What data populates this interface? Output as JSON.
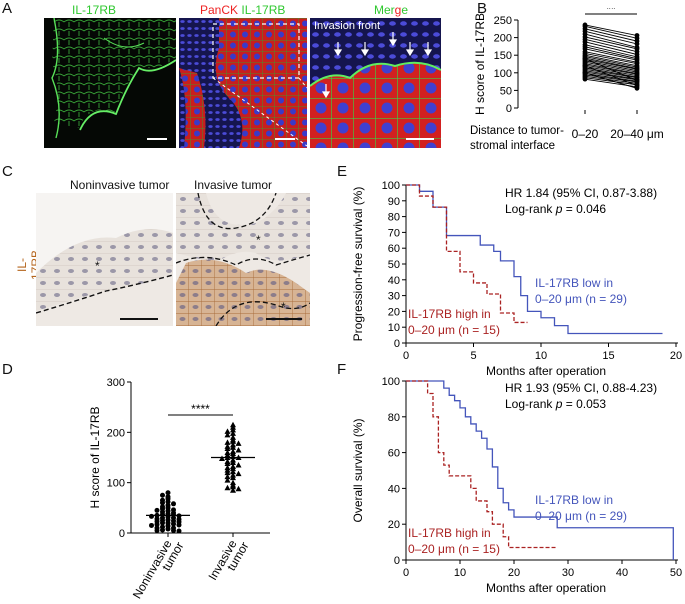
{
  "panels": {
    "A": "A",
    "B": "B",
    "C": "C",
    "D": "D",
    "E": "E",
    "F": "F"
  },
  "panel_a": {
    "img1_label": "IL-17RB",
    "img2_label_red": "PanCK",
    "img2_label_green": "IL-17RB",
    "img3_label": "Merge",
    "invasion_front": "Invasion front"
  },
  "panel_c": {
    "title_left": "Noninvasive tumor",
    "title_right": "Invasive tumor",
    "side_label": "IL-17RB",
    "star": "*"
  },
  "colors": {
    "low": "#4455bb",
    "high": "#aa2222",
    "green": "#33cc33",
    "red": "#dd2222"
  },
  "chart_data": [
    {
      "id": "B",
      "type": "line",
      "ylabel": "H score of IL-17RB",
      "xlabel_left": "Distance to tumor-",
      "xlabel_left2": "stromal interface",
      "categories": [
        "0–20",
        "20–40 μm"
      ],
      "ylim": [
        0,
        250
      ],
      "yticks": [
        0,
        50,
        100,
        150,
        200,
        250
      ],
      "significance": "**",
      "pairs": [
        [
          236,
          206
        ],
        [
          232,
          198
        ],
        [
          225,
          190
        ],
        [
          218,
          182
        ],
        [
          210,
          172
        ],
        [
          202,
          168
        ],
        [
          195,
          160
        ],
        [
          188,
          152
        ],
        [
          180,
          145
        ],
        [
          174,
          140
        ],
        [
          168,
          136
        ],
        [
          160,
          130
        ],
        [
          155,
          126
        ],
        [
          150,
          120
        ],
        [
          146,
          116
        ],
        [
          142,
          112
        ],
        [
          138,
          110
        ],
        [
          134,
          106
        ],
        [
          130,
          102
        ],
        [
          126,
          98
        ],
        [
          122,
          96
        ],
        [
          118,
          92
        ],
        [
          114,
          88
        ],
        [
          110,
          86
        ],
        [
          106,
          82
        ],
        [
          102,
          80
        ],
        [
          98,
          76
        ],
        [
          94,
          74
        ],
        [
          90,
          70
        ],
        [
          86,
          66
        ],
        [
          82,
          60
        ],
        [
          100,
          56
        ],
        [
          120,
          64
        ],
        [
          140,
          78
        ]
      ]
    },
    {
      "id": "D",
      "type": "scatter",
      "ylabel": "H score of IL-17RB",
      "categories": [
        "Noninvasive tumor",
        "Invasive tumor"
      ],
      "cat_line1": [
        "Noninvasive",
        "Invasive"
      ],
      "cat_line2": [
        "tumor",
        "tumor"
      ],
      "ylim": [
        0,
        300
      ],
      "yticks": [
        0,
        100,
        200,
        300
      ],
      "significance": "****",
      "means": [
        35,
        150
      ],
      "series": [
        {
          "values": [
            80,
            75,
            72,
            68,
            65,
            62,
            60,
            58,
            55,
            52,
            50,
            48,
            46,
            45,
            44,
            42,
            40,
            38,
            37,
            36,
            35,
            34,
            33,
            32,
            30,
            30,
            28,
            27,
            26,
            25,
            24,
            23,
            22,
            20,
            20,
            18,
            17,
            16,
            15,
            14,
            12,
            10,
            10,
            8,
            6,
            5,
            5,
            4
          ]
        },
        {
          "values": [
            215,
            210,
            205,
            202,
            198,
            195,
            190,
            185,
            182,
            180,
            178,
            175,
            172,
            170,
            168,
            165,
            162,
            160,
            158,
            155,
            152,
            150,
            150,
            148,
            145,
            142,
            140,
            138,
            135,
            132,
            130,
            128,
            125,
            122,
            120,
            118,
            115,
            112,
            110,
            105,
            100,
            95,
            92,
            90,
            88,
            85
          ]
        }
      ]
    },
    {
      "id": "E",
      "type": "line",
      "xlabel": "Months after operation",
      "ylabel": "Progression-free survival (%)",
      "xlim": [
        0,
        20
      ],
      "ylim": [
        0,
        100
      ],
      "xticks": [
        0,
        5,
        10,
        15,
        20
      ],
      "yticks": [
        0,
        10,
        20,
        30,
        40,
        50,
        60,
        70,
        80,
        90,
        100
      ],
      "stats_line1": "HR 1.84 (95% CI, 0.87-3.88)",
      "stats_line2_a": "Log-rank ",
      "stats_line2_p": "p",
      "stats_line2_b": " = 0.046",
      "series": [
        {
          "name_line1": "IL-17RB low in",
          "name_line2": "0–20 μm (n = 29)",
          "color": "#4455bb",
          "steps": [
            [
              0,
              100
            ],
            [
              1,
              96
            ],
            [
              2,
              86
            ],
            [
              3,
              68
            ],
            [
              5,
              68
            ],
            [
              5.5,
              62
            ],
            [
              6.5,
              58
            ],
            [
              7,
              52
            ],
            [
              8,
              42
            ],
            [
              8.5,
              30
            ],
            [
              9,
              20
            ],
            [
              10,
              16
            ],
            [
              11,
              11
            ],
            [
              12,
              6
            ],
            [
              19,
              6
            ]
          ]
        },
        {
          "name_line1": "IL-17RB high in",
          "name_line2": "0–20 μm (n = 15)",
          "color": "#aa2222",
          "steps": [
            [
              0,
              100
            ],
            [
              1,
              93
            ],
            [
              2,
              86
            ],
            [
              3,
              58
            ],
            [
              4,
              45
            ],
            [
              5,
              38
            ],
            [
              6,
              31
            ],
            [
              7,
              19
            ],
            [
              8,
              13
            ],
            [
              9,
              13
            ]
          ]
        }
      ]
    },
    {
      "id": "F",
      "type": "line",
      "xlabel": "Months after operation",
      "ylabel": "Overall survival (%)",
      "xlim": [
        0,
        50
      ],
      "ylim": [
        0,
        100
      ],
      "xticks": [
        0,
        10,
        20,
        30,
        40,
        50
      ],
      "yticks": [
        0,
        20,
        40,
        60,
        80,
        100
      ],
      "stats_line1": "HR 1.93 (95% CI, 0.88-4.23)",
      "stats_line2_a": "Log-rank ",
      "stats_line2_p": "p",
      "stats_line2_b": " = 0.053",
      "series": [
        {
          "name_line1": "IL-17RB low in",
          "name_line2": "0–20 μm (n = 29)",
          "color": "#4455bb",
          "steps": [
            [
              0,
              100
            ],
            [
              7,
              96
            ],
            [
              8,
              92
            ],
            [
              9,
              89
            ],
            [
              10,
              85
            ],
            [
              11,
              80
            ],
            [
              12,
              76
            ],
            [
              13,
              72
            ],
            [
              14,
              68
            ],
            [
              15,
              62
            ],
            [
              16,
              52
            ],
            [
              17,
              40
            ],
            [
              18,
              32
            ],
            [
              19,
              28
            ],
            [
              20,
              24
            ],
            [
              28,
              18
            ],
            [
              49,
              18
            ],
            [
              49.5,
              0
            ]
          ]
        },
        {
          "name_line1": "IL-17RB high in",
          "name_line2": "0–20 μm (n = 15)",
          "color": "#aa2222",
          "steps": [
            [
              0,
              100
            ],
            [
              4,
              93
            ],
            [
              5,
              80
            ],
            [
              6,
              60
            ],
            [
              7,
              53
            ],
            [
              8,
              47
            ],
            [
              12,
              40
            ],
            [
              13,
              33
            ],
            [
              15,
              27
            ],
            [
              16,
              20
            ],
            [
              18,
              13
            ],
            [
              19,
              7
            ],
            [
              28,
              7
            ]
          ]
        }
      ]
    }
  ]
}
